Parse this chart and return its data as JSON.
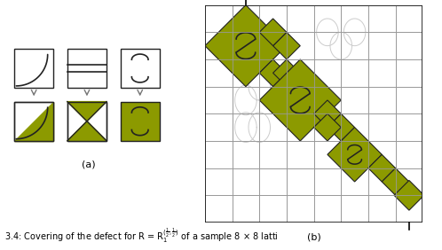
{
  "olive": "#8c9a00",
  "outline": "#222222",
  "grid_color": "#999999",
  "arrow_color": "#777777",
  "ghost_color": "#cccccc",
  "bg": "#ffffff",
  "fig_width": 4.98,
  "fig_height": 2.82,
  "dpi": 100
}
